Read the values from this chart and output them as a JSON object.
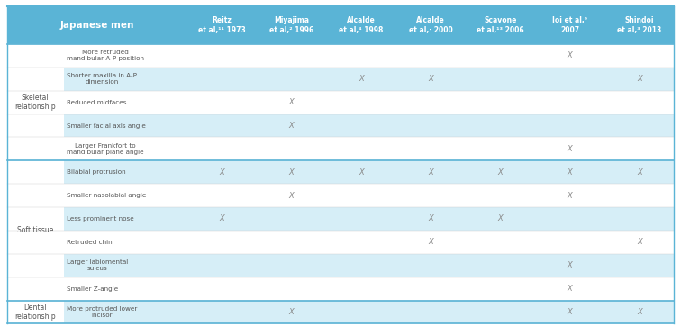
{
  "title_col1": "Japanese men",
  "col_headers": [
    "Reitz\net al,¹¹ 1973",
    "Miyajima\net al,² 1996",
    "Alcalde\net al,⁴ 1998",
    "Alcalde\net al,· 2000",
    "Scavone\net al,¹³ 2006",
    "Ioi et al,⁹\n2007",
    "Shindoi\net al,³ 2013"
  ],
  "row_groups": [
    {
      "group": "Skeletal\nrelationship",
      "rows": [
        {
          "label": "More retruded\nmandibular A-P position",
          "shade": false,
          "marks": [
            0,
            0,
            0,
            0,
            0,
            1,
            0
          ]
        },
        {
          "label": "Shorter maxilla in A-P\ndimension",
          "shade": true,
          "marks": [
            0,
            0,
            1,
            1,
            0,
            0,
            1
          ]
        },
        {
          "label": "Reduced midfaces",
          "shade": false,
          "marks": [
            0,
            1,
            0,
            0,
            0,
            0,
            0
          ]
        },
        {
          "label": "Smaller facial axis angle",
          "shade": true,
          "marks": [
            0,
            1,
            0,
            0,
            0,
            0,
            0
          ]
        },
        {
          "label": "Larger Frankfort to\nmandibular plane angle",
          "shade": false,
          "marks": [
            0,
            0,
            0,
            0,
            0,
            1,
            0
          ]
        }
      ]
    },
    {
      "group": "Soft tissue",
      "rows": [
        {
          "label": "Bilabial protrusion",
          "shade": true,
          "marks": [
            1,
            1,
            1,
            1,
            1,
            1,
            1
          ]
        },
        {
          "label": "Smaller nasolabial angle",
          "shade": false,
          "marks": [
            0,
            1,
            0,
            0,
            0,
            1,
            0
          ]
        },
        {
          "label": "Less prominent nose",
          "shade": true,
          "marks": [
            1,
            0,
            0,
            1,
            1,
            0,
            0
          ]
        },
        {
          "label": "Retruded chin",
          "shade": false,
          "marks": [
            0,
            0,
            0,
            1,
            0,
            0,
            1
          ]
        },
        {
          "label": "Larger labiomental\nsulcus",
          "shade": true,
          "marks": [
            0,
            0,
            0,
            0,
            0,
            1,
            0
          ]
        },
        {
          "label": "Smaller Z-angle",
          "shade": false,
          "marks": [
            0,
            0,
            0,
            0,
            0,
            1,
            0
          ]
        }
      ]
    },
    {
      "group": "Dental\nrelationship",
      "rows": [
        {
          "label": "More protruded lower\nincisor",
          "shade": true,
          "marks": [
            0,
            1,
            0,
            0,
            0,
            1,
            1
          ]
        }
      ]
    }
  ],
  "header_bg": "#5ab4d6",
  "header_text": "#ffffff",
  "shade_color": "#d6eef7",
  "white_color": "#ffffff",
  "group_sep_color": "#5ab4d6",
  "text_color": "#555555",
  "mark_color": "#888888",
  "n_data_cols": 7
}
